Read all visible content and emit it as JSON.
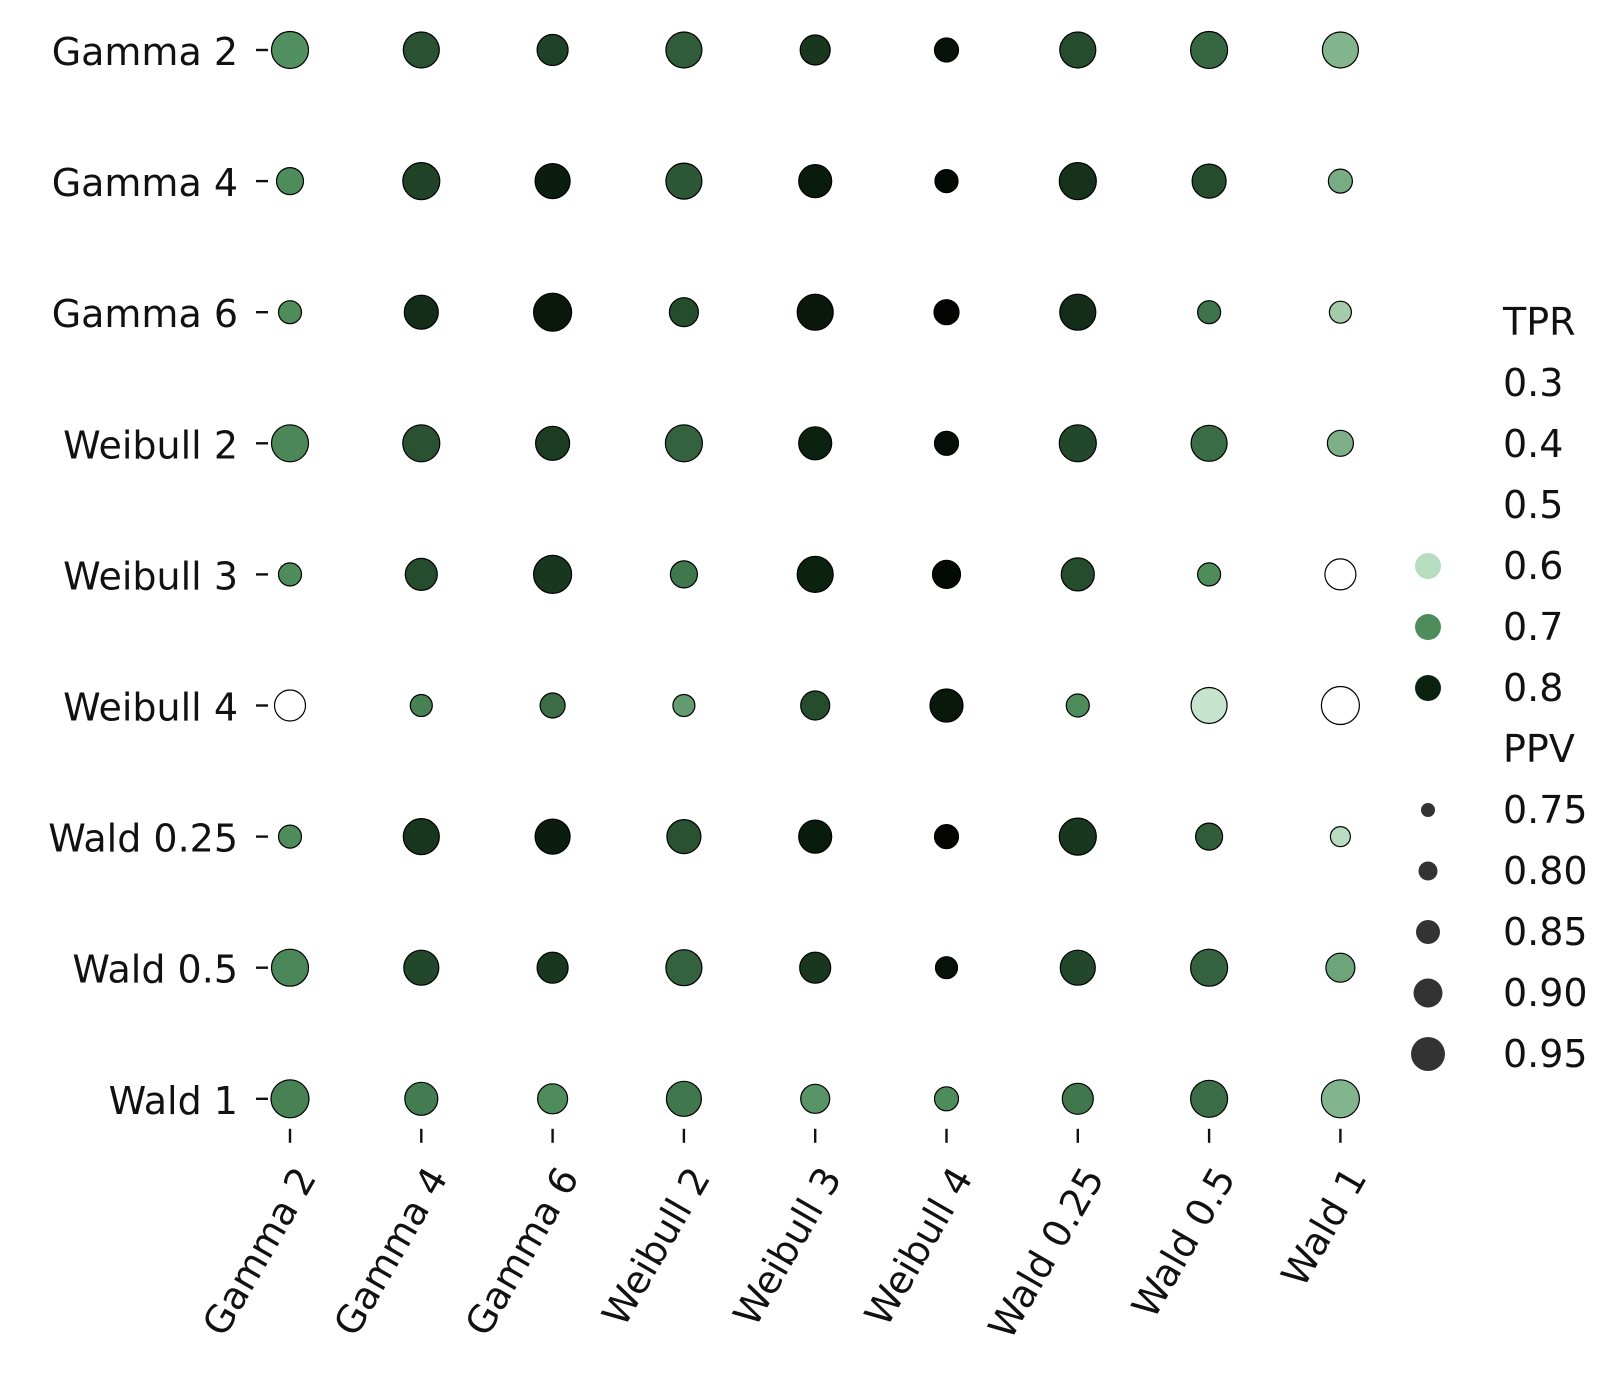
{
  "chart_data": {
    "type": "scatter",
    "subtype": "dot-matrix",
    "x_categories": [
      "Gamma 2",
      "Gamma 4",
      "Gamma 6",
      "Weibull 2",
      "Weibull 3",
      "Weibull 4",
      "Wald 0.25",
      "Wald 0.5",
      "Wald 1"
    ],
    "y_categories": [
      "Gamma 2",
      "Gamma 4",
      "Gamma 6",
      "Weibull 2",
      "Weibull 3",
      "Weibull 4",
      "Wald 0.25",
      "Wald 0.5",
      "Wald 1"
    ],
    "color_variable": "TPR",
    "size_variable": "PPV",
    "color_range": [
      0.5,
      0.85
    ],
    "size_range": [
      0.75,
      0.95
    ],
    "colors": {
      "low": "#ffffff",
      "light": "#b7dcc0",
      "mid": "#4e8c5c",
      "dark": "#0c2210",
      "darkest": "#000000",
      "size_legend_marker": "#333333"
    },
    "tpr": [
      [
        0.695,
        0.755,
        0.77,
        0.745,
        0.78,
        0.83,
        0.76,
        0.735,
        0.65
      ],
      [
        0.7,
        0.77,
        0.81,
        0.75,
        0.815,
        0.85,
        0.785,
        0.76,
        0.66
      ],
      [
        0.7,
        0.79,
        0.82,
        0.76,
        0.82,
        0.86,
        0.79,
        0.725,
        0.62
      ],
      [
        0.705,
        0.755,
        0.775,
        0.74,
        0.8,
        0.84,
        0.765,
        0.73,
        0.655
      ],
      [
        0.7,
        0.76,
        0.78,
        0.72,
        0.8,
        0.85,
        0.76,
        0.7,
        0.5
      ],
      [
        0.5,
        0.71,
        0.73,
        0.68,
        0.76,
        0.82,
        0.7,
        0.58,
        0.5
      ],
      [
        0.7,
        0.78,
        0.81,
        0.755,
        0.815,
        0.86,
        0.78,
        0.745,
        0.6
      ],
      [
        0.705,
        0.765,
        0.78,
        0.74,
        0.78,
        0.83,
        0.765,
        0.74,
        0.67
      ],
      [
        0.71,
        0.715,
        0.7,
        0.72,
        0.69,
        0.7,
        0.72,
        0.73,
        0.65
      ]
    ],
    "ppv": [
      [
        0.94,
        0.93,
        0.88,
        0.93,
        0.87,
        0.81,
        0.93,
        0.94,
        0.93
      ],
      [
        0.84,
        0.94,
        0.92,
        0.93,
        0.9,
        0.8,
        0.94,
        0.91,
        0.81
      ],
      [
        0.8,
        0.91,
        0.95,
        0.86,
        0.93,
        0.82,
        0.93,
        0.8,
        0.79
      ],
      [
        0.94,
        0.94,
        0.91,
        0.94,
        0.9,
        0.81,
        0.94,
        0.93,
        0.83
      ],
      [
        0.8,
        0.89,
        0.95,
        0.84,
        0.93,
        0.85,
        0.9,
        0.8,
        0.88
      ],
      [
        0.88,
        0.79,
        0.82,
        0.79,
        0.86,
        0.9,
        0.8,
        0.93,
        0.95
      ],
      [
        0.8,
        0.93,
        0.92,
        0.91,
        0.9,
        0.81,
        0.94,
        0.84,
        0.77
      ],
      [
        0.94,
        0.92,
        0.88,
        0.93,
        0.88,
        0.79,
        0.92,
        0.94,
        0.86
      ],
      [
        0.96,
        0.9,
        0.87,
        0.92,
        0.86,
        0.81,
        0.88,
        0.94,
        0.96
      ]
    ],
    "legend": {
      "color_title": "TPR",
      "color_entries": [
        {
          "label": "0.3",
          "value": 0.3
        },
        {
          "label": "0.4",
          "value": 0.4
        },
        {
          "label": "0.5",
          "value": 0.5
        },
        {
          "label": "0.6",
          "value": 0.6
        },
        {
          "label": "0.7",
          "value": 0.7
        },
        {
          "label": "0.8",
          "value": 0.8
        }
      ],
      "size_title": "PPV",
      "size_entries": [
        {
          "label": "0.75",
          "value": 0.75
        },
        {
          "label": "0.80",
          "value": 0.8
        },
        {
          "label": "0.85",
          "value": 0.85
        },
        {
          "label": "0.90",
          "value": 0.9
        },
        {
          "label": "0.95",
          "value": 0.95
        }
      ],
      "placement": "right"
    },
    "title": "",
    "xlabel": "",
    "ylabel": "",
    "x_tick_rotation_deg": 60,
    "grid": false
  }
}
